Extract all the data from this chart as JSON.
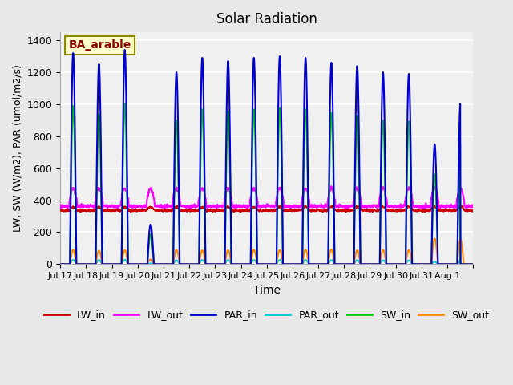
{
  "title": "Solar Radiation",
  "ylabel": "LW, SW (W/m2), PAR (umol/m2/s)",
  "xlabel": "Time",
  "annotation": "BA_arable",
  "ylim": [
    0,
    1450
  ],
  "background_color": "#e8e8e8",
  "plot_bg_color": "#f0f0f0",
  "grid_color": "white",
  "legend_entries": [
    "LW_in",
    "LW_out",
    "PAR_in",
    "PAR_out",
    "SW_in",
    "SW_out"
  ],
  "line_colors": {
    "LW_in": "#cc0000",
    "LW_out": "#ff00ff",
    "PAR_in": "#0000cc",
    "PAR_out": "#00cccc",
    "SW_in": "#00cc00",
    "SW_out": "#ff8800"
  },
  "line_widths": {
    "LW_in": 1.5,
    "LW_out": 1.5,
    "PAR_in": 1.5,
    "PAR_out": 1.5,
    "SW_in": 1.5,
    "SW_out": 1.5
  },
  "xtick_positions": [
    0,
    1,
    2,
    3,
    4,
    5,
    6,
    7,
    8,
    9,
    10,
    11,
    12,
    13,
    14,
    15,
    16
  ],
  "xtick_labels": [
    "Jul 17",
    "Jul 18",
    "Jul 19",
    "Jul 20",
    "Jul 21",
    "Jul 22",
    "Jul 23",
    "Jul 24",
    "Jul 25",
    "Jul 26",
    "Jul 27",
    "Jul 28",
    "Jul 29",
    "Jul 30",
    "Jul 31",
    "Aug 1",
    ""
  ],
  "ytick_values": [
    0,
    200,
    400,
    600,
    800,
    1000,
    1200,
    1400
  ]
}
